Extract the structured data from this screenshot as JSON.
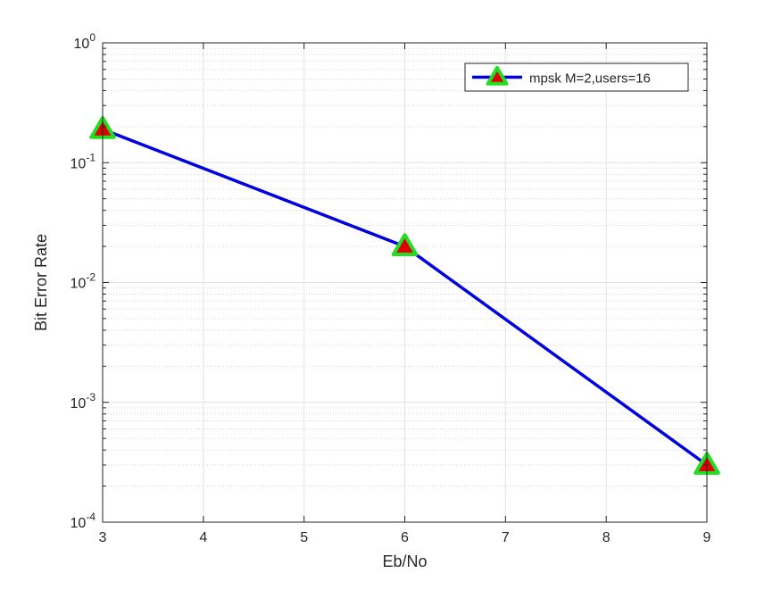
{
  "chart_data": {
    "type": "line",
    "xlabel": "Eb/No",
    "ylabel": "Bit Error Rate",
    "xlim": [
      3,
      9
    ],
    "ylim": [
      0.0001,
      1
    ],
    "yscale": "log",
    "grid": true,
    "minor_grid": true,
    "x_ticks": [
      3,
      4,
      5,
      6,
      7,
      8,
      9
    ],
    "x_tick_labels": [
      "3",
      "4",
      "5",
      "6",
      "7",
      "8",
      "9"
    ],
    "y_ticks": [
      0.0001,
      0.001,
      0.01,
      0.1,
      1
    ],
    "y_tick_labels": [
      {
        "base": "10",
        "exp": "-4"
      },
      {
        "base": "10",
        "exp": "-3"
      },
      {
        "base": "10",
        "exp": "-2"
      },
      {
        "base": "10",
        "exp": "-1"
      },
      {
        "base": "10",
        "exp": "0"
      }
    ],
    "legend_placement": "top-right",
    "series": [
      {
        "name": "mpsk M=2,users=16",
        "x": [
          3,
          6,
          9
        ],
        "y": [
          0.19,
          0.02,
          0.0003
        ],
        "color": "#0000e0",
        "marker": "triangle",
        "marker_face": "#e00000",
        "marker_edge": "#22dd22"
      }
    ]
  }
}
